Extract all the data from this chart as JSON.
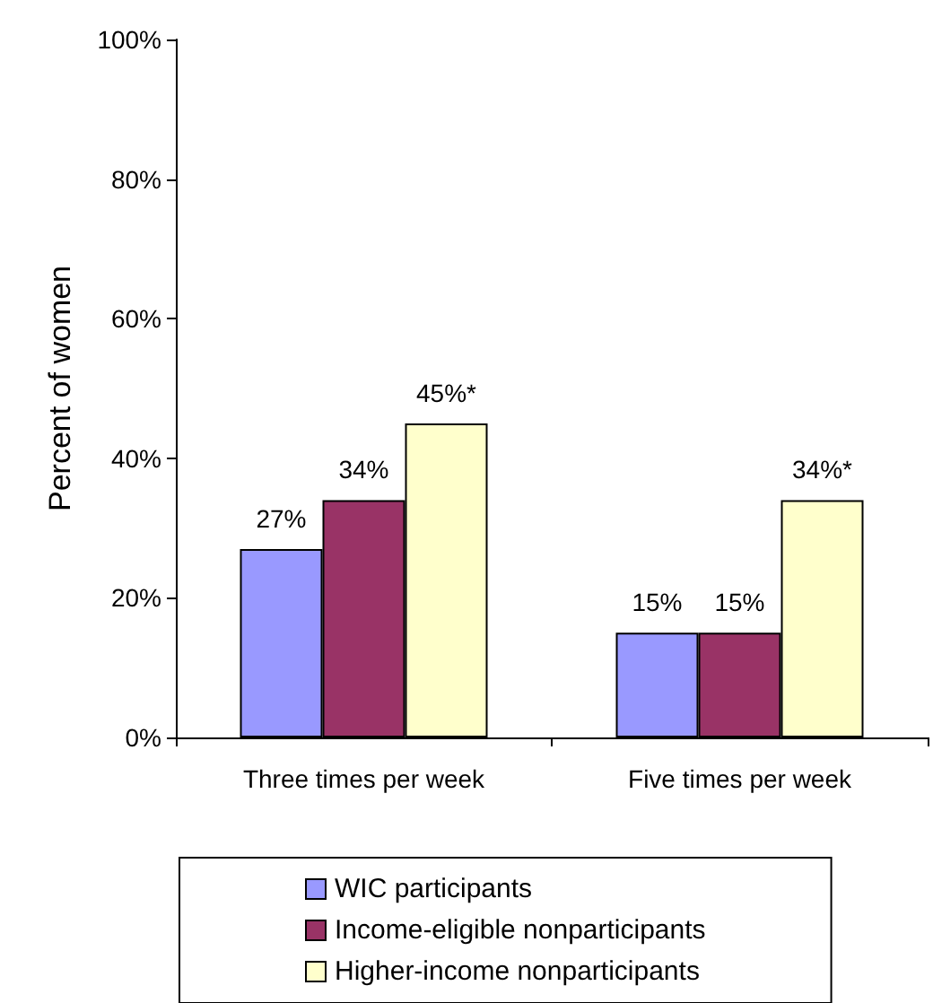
{
  "chart_data": {
    "type": "bar",
    "ylabel": "Percent of women",
    "categories": [
      "Three times per week",
      "Five times per week"
    ],
    "series": [
      {
        "name": "WIC participants",
        "color": "#9999ff",
        "values": [
          27,
          15
        ],
        "value_labels": [
          "27%",
          "15%"
        ]
      },
      {
        "name": "Income-eligible nonparticipants",
        "color": "#993366",
        "values": [
          34,
          15
        ],
        "value_labels": [
          "34%",
          "15%"
        ]
      },
      {
        "name": "Higher-income nonparticipants",
        "color": "#ffffcc",
        "values": [
          45,
          34
        ],
        "value_labels": [
          "45%*",
          "34%*"
        ]
      }
    ],
    "ylim": [
      0,
      100
    ],
    "yticks": [
      {
        "value": 0,
        "label": "0%"
      },
      {
        "value": 20,
        "label": "20%"
      },
      {
        "value": 40,
        "label": "40%"
      },
      {
        "value": 60,
        "label": "60%"
      },
      {
        "value": 80,
        "label": "80%"
      },
      {
        "value": 100,
        "label": "100%"
      }
    ],
    "grid": false,
    "legend": "bottom"
  }
}
